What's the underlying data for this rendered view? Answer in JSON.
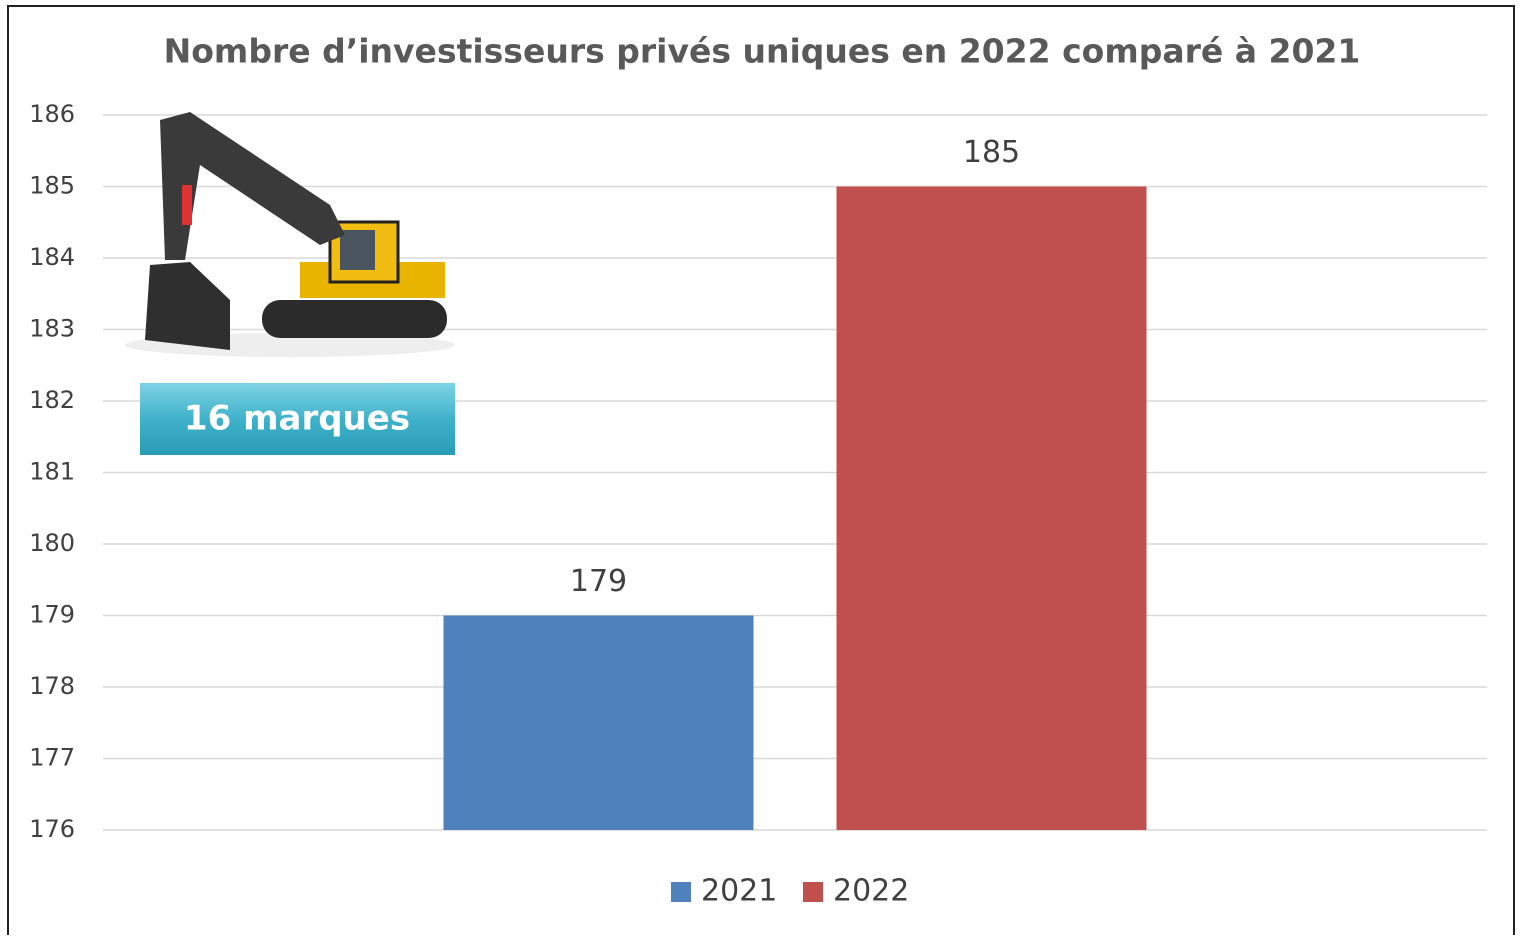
{
  "chart_data": {
    "type": "bar",
    "title": "Nombre d’investisseurs privés uniques en 2022 comparé à 2021",
    "categories": [
      null
    ],
    "series": [
      {
        "name": "2021",
        "color": "#4f81bd",
        "values": [
          179
        ]
      },
      {
        "name": "2022",
        "color": "#c0504d",
        "values": [
          185
        ]
      }
    ],
    "ylim": [
      176,
      186
    ],
    "yticks": [
      176,
      177,
      178,
      179,
      180,
      181,
      182,
      183,
      184,
      185,
      186
    ],
    "grid": true,
    "legend": "bottom",
    "annotation": "16 marques"
  }
}
